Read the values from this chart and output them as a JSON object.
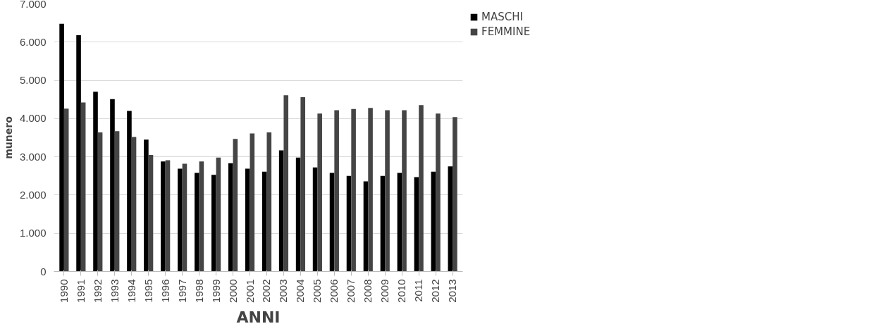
{
  "chart_data": {
    "type": "bar",
    "xlabel": "ANNI",
    "ylabel": "munero",
    "categories": [
      "1990",
      "1991",
      "1992",
      "1993",
      "1994",
      "1995",
      "1996",
      "1997",
      "1998",
      "1999",
      "2000",
      "2001",
      "2002",
      "2003",
      "2004",
      "2005",
      "2006",
      "2007",
      "2008",
      "2009",
      "2010",
      "2011",
      "2012",
      "2013"
    ],
    "series": [
      {
        "name": "MASCHI",
        "color": "#000000",
        "values": [
          6480,
          6180,
          4700,
          4510,
          4200,
          3450,
          2880,
          2690,
          2580,
          2530,
          2830,
          2690,
          2610,
          3170,
          2980,
          2720,
          2580,
          2500,
          2360,
          2500,
          2580,
          2470,
          2610,
          2750
        ]
      },
      {
        "name": "FEMMINE",
        "color": "#454545",
        "values": [
          4260,
          4420,
          3640,
          3670,
          3520,
          3050,
          2910,
          2820,
          2880,
          2980,
          3470,
          3610,
          3640,
          4610,
          4560,
          4130,
          4220,
          4250,
          4280,
          4220,
          4220,
          4350,
          4130,
          4040
        ]
      }
    ],
    "ylim": [
      0,
      7000
    ],
    "yticks": [
      {
        "value": 0,
        "label": "0"
      },
      {
        "value": 1000,
        "label": "1.000"
      },
      {
        "value": 2000,
        "label": "2.000"
      },
      {
        "value": 3000,
        "label": "3.000"
      },
      {
        "value": 4000,
        "label": "4.000"
      },
      {
        "value": 5000,
        "label": "5.000"
      },
      {
        "value": 6000,
        "label": "6.000"
      },
      {
        "value": 7000,
        "label": "7.000"
      }
    ],
    "grid": "y",
    "legend": "right"
  }
}
